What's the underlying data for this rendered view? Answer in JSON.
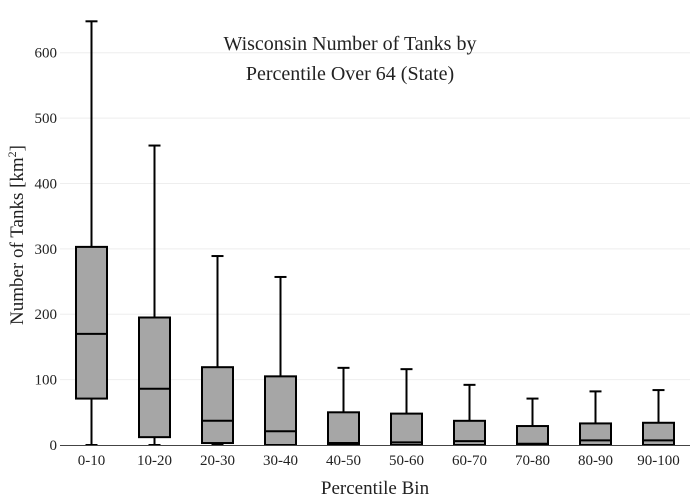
{
  "chart_data": {
    "type": "box",
    "title_lines": [
      "Wisconsin Number of Tanks by",
      "Percentile Over 64 (State)"
    ],
    "xlabel": "Percentile Bin",
    "ylabel": "Number of Tanks  [km",
    "ylabel_superscript": "2",
    "ylabel_suffix": "]",
    "ylim": [
      0,
      650
    ],
    "yticks": [
      0,
      100,
      200,
      300,
      400,
      500,
      600
    ],
    "grid": true,
    "categories": [
      "0-10",
      "10-20",
      "20-30",
      "30-40",
      "40-50",
      "50-60",
      "60-70",
      "70-80",
      "80-90",
      "90-100"
    ],
    "boxes": [
      {
        "min": 0,
        "q1": 71,
        "median": 170,
        "q3": 303,
        "max": 648
      },
      {
        "min": 0,
        "q1": 12,
        "median": 86,
        "q3": 195,
        "max": 458
      },
      {
        "min": 0,
        "q1": 3,
        "median": 37,
        "q3": 119,
        "max": 289
      },
      {
        "min": 0,
        "q1": 0,
        "median": 21,
        "q3": 105,
        "max": 257
      },
      {
        "min": 0,
        "q1": 0,
        "median": 3,
        "q3": 50,
        "max": 118
      },
      {
        "min": 0,
        "q1": 0,
        "median": 4,
        "q3": 48,
        "max": 116
      },
      {
        "min": 0,
        "q1": 0,
        "median": 6,
        "q3": 37,
        "max": 92
      },
      {
        "min": 0,
        "q1": 0,
        "median": 2,
        "q3": 29,
        "max": 71
      },
      {
        "min": 0,
        "q1": 0,
        "median": 7,
        "q3": 33,
        "max": 82
      },
      {
        "min": 0,
        "q1": 0,
        "median": 7,
        "q3": 34,
        "max": 84
      }
    ],
    "colors": {
      "box_fill": "#a6a6a6",
      "stroke": "#000000",
      "grid": "#eeeeee",
      "axis": "#444444"
    }
  }
}
